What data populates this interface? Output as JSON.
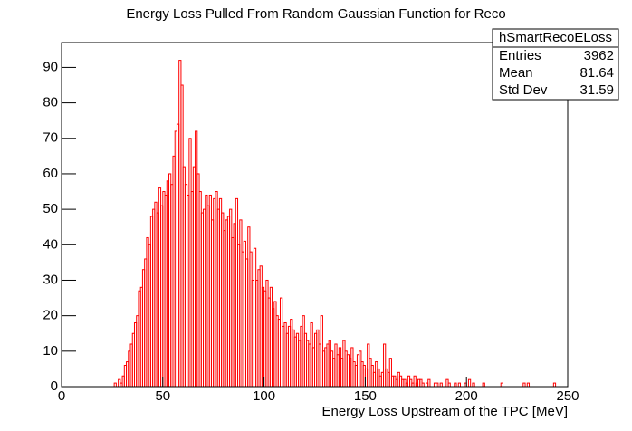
{
  "chart_data": {
    "type": "histogram",
    "title": "Energy Loss Pulled From Random Gaussian Function for Reco",
    "x_label": "Energy Loss Upstream of the TPC [MeV]",
    "color": "#ff0000",
    "bins": [
      0,
      1,
      2,
      3,
      4,
      5,
      6,
      7,
      8,
      9,
      10,
      11,
      12,
      13,
      14,
      15,
      16,
      17,
      18,
      19,
      20,
      21,
      22,
      23,
      24,
      25,
      26,
      27,
      28,
      29,
      30,
      31,
      32,
      33,
      34,
      35,
      36,
      37,
      38,
      39,
      40,
      41,
      42,
      43,
      44,
      45,
      46,
      47,
      48,
      49,
      50,
      51,
      52,
      53,
      54,
      55,
      56,
      57,
      58,
      59,
      60,
      61,
      62,
      63,
      64,
      65,
      66,
      67,
      68,
      69,
      70,
      71,
      72,
      73,
      74,
      75,
      76,
      77,
      78,
      79,
      80,
      81,
      82,
      83,
      84,
      85,
      86,
      87,
      88,
      89,
      90,
      91,
      92,
      93,
      94,
      95,
      96,
      97,
      98,
      99,
      100,
      101,
      102,
      103,
      104,
      105,
      106,
      107,
      108,
      109,
      110,
      111,
      112,
      113,
      114,
      115,
      116,
      117,
      118,
      119,
      120,
      121,
      122,
      123,
      124,
      125,
      126,
      127,
      128,
      129,
      130,
      131,
      132,
      133,
      134,
      135,
      136,
      137,
      138,
      139,
      140,
      141,
      142,
      143,
      144,
      145,
      146,
      147,
      148,
      149,
      150,
      151,
      152,
      153,
      154,
      155,
      156,
      157,
      158,
      159,
      160,
      161,
      162,
      163,
      164,
      165,
      166,
      167,
      168,
      169,
      170,
      171,
      172,
      173,
      174,
      175,
      176,
      177,
      178,
      179,
      180,
      181,
      182,
      183,
      184,
      185,
      186,
      187,
      188,
      189,
      190,
      191,
      192,
      193,
      194,
      195,
      196,
      197,
      198,
      199,
      200,
      201,
      202,
      203,
      204,
      205,
      206,
      207,
      208,
      209,
      210,
      211,
      212,
      213,
      214,
      215,
      216,
      217,
      218,
      219,
      220,
      221,
      222,
      223,
      224,
      225,
      226,
      227,
      228,
      229,
      230,
      231,
      232,
      233,
      234,
      235,
      236,
      237,
      238,
      239,
      240,
      241,
      242,
      243,
      244,
      245,
      246,
      247,
      248,
      249,
      250
    ],
    "counts": [
      0,
      0,
      0,
      0,
      0,
      0,
      0,
      0,
      0,
      0,
      0,
      0,
      0,
      0,
      0,
      0,
      0,
      0,
      0,
      0,
      0,
      0,
      0,
      0,
      0,
      0,
      1,
      0,
      2,
      1,
      3,
      6,
      7,
      10,
      12,
      15,
      18,
      20,
      27,
      28,
      33,
      36,
      42,
      40,
      48,
      50,
      52,
      49,
      56,
      51,
      55,
      54,
      58,
      60,
      57,
      65,
      72,
      74,
      92,
      85,
      62,
      57,
      54,
      70,
      55,
      62,
      72,
      60,
      55,
      49,
      50,
      54,
      51,
      54,
      47,
      53,
      55,
      50,
      53,
      49,
      44,
      47,
      48,
      50,
      42,
      46,
      53,
      40,
      47,
      38,
      41,
      36,
      45,
      38,
      30,
      39,
      30,
      33,
      34,
      28,
      27,
      30,
      25,
      28,
      22,
      24,
      20,
      19,
      25,
      17,
      18,
      15,
      17,
      19,
      16,
      14,
      15,
      13,
      17,
      20,
      15,
      13,
      12,
      18,
      11,
      15,
      16,
      12,
      20,
      10,
      11,
      12,
      13,
      10,
      8,
      12,
      9,
      11,
      8,
      13,
      10,
      9,
      8,
      11,
      7,
      6,
      9,
      10,
      7,
      6,
      5,
      12,
      8,
      6,
      4,
      7,
      5,
      3,
      4,
      12,
      5,
      4,
      8,
      3,
      3,
      2,
      4,
      3,
      2,
      2,
      1,
      3,
      2,
      1,
      3,
      1,
      2,
      2,
      1,
      0,
      1,
      2,
      0,
      0,
      1,
      1,
      0,
      1,
      0,
      0,
      2,
      1,
      0,
      0,
      1,
      0,
      1,
      0,
      0,
      1,
      0,
      2,
      0,
      1,
      0,
      0,
      0,
      0,
      1,
      0,
      0,
      0,
      0,
      0,
      0,
      0,
      0,
      1,
      0,
      0,
      0,
      0,
      0,
      0,
      0,
      0,
      0,
      0,
      1,
      0,
      1,
      0,
      0,
      0,
      0,
      0,
      0,
      0,
      0,
      0,
      0,
      0,
      0,
      1,
      0,
      0,
      0,
      0,
      0,
      0
    ],
    "xlim": [
      0,
      250
    ],
    "xticks": [
      0,
      50,
      100,
      150,
      200,
      250
    ],
    "ylim": [
      0,
      97
    ],
    "yticks": [
      0,
      10,
      20,
      30,
      40,
      50,
      60,
      70,
      80,
      90
    ],
    "stats": {
      "name": "hSmartRecoELoss",
      "rows": [
        {
          "label": "Entries",
          "value": 3962
        },
        {
          "label": "Mean",
          "value": 81.64
        },
        {
          "label": "Std Dev",
          "value": 31.59
        }
      ]
    }
  }
}
